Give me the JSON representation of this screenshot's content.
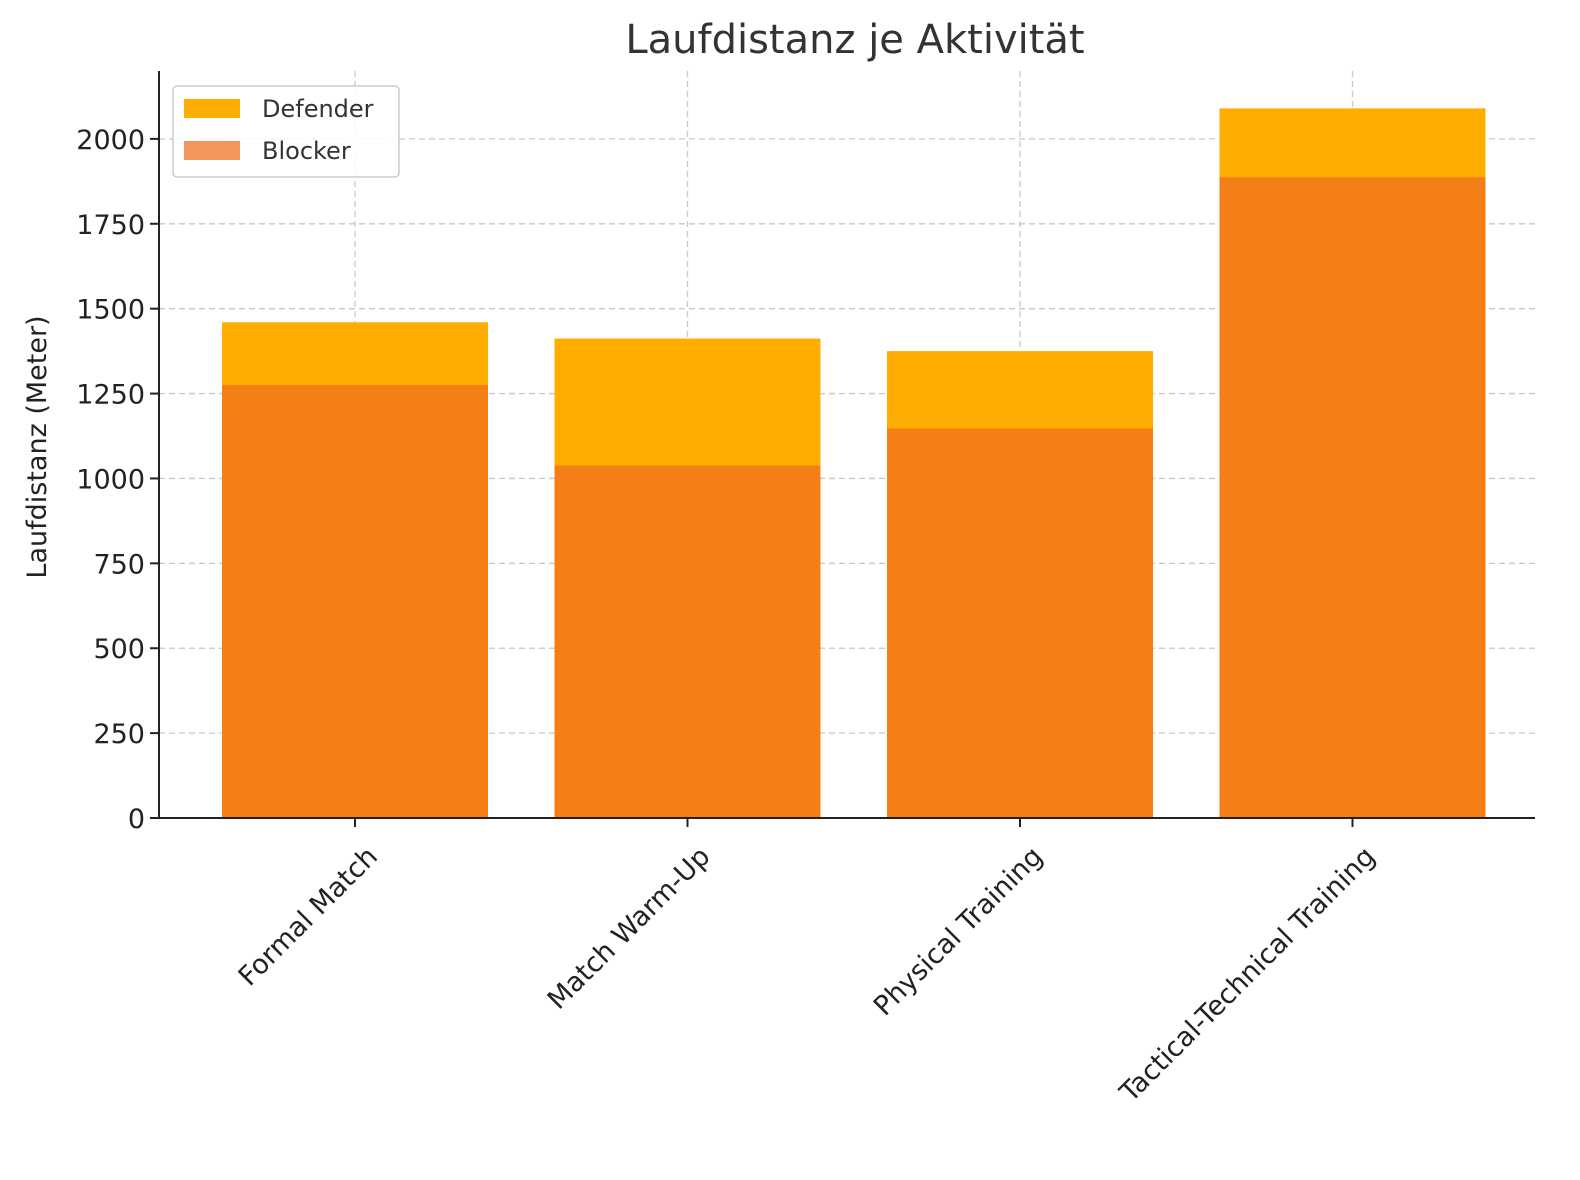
{
  "chart_data": {
    "type": "bar",
    "title": "Laufdistanz je Aktivität",
    "xlabel": "",
    "ylabel": "Laufdistanz (Meter)",
    "categories": [
      "Formal Match",
      "Match Warm-Up",
      "Physical Training",
      "Tactical-Technical Training"
    ],
    "series": [
      {
        "name": "Defender",
        "values": [
          1460,
          1412,
          1375,
          2090
        ],
        "color": "#ffad00"
      },
      {
        "name": "Blocker",
        "values": [
          1275,
          1038,
          1147,
          1887
        ],
        "color": "#f4955e",
        "overlap_color": "#f57f17"
      }
    ],
    "ylim": [
      0,
      2200
    ],
    "yticks": [
      "0",
      "250",
      "500",
      "750",
      "1000",
      "1250",
      "1500",
      "1750",
      "2000"
    ],
    "grid": true,
    "legend": "top-left",
    "overlay": true
  }
}
